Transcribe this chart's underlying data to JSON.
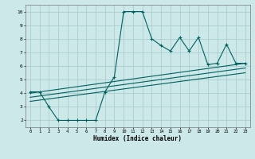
{
  "xlabel": "Humidex (Indice chaleur)",
  "background_color": "#cce8e8",
  "grid_color": "#aacece",
  "line_color": "#006060",
  "xlim": [
    -0.5,
    23.5
  ],
  "ylim": [
    1.5,
    10.5
  ],
  "xticks": [
    0,
    1,
    2,
    3,
    4,
    5,
    6,
    7,
    8,
    9,
    10,
    11,
    12,
    13,
    14,
    15,
    16,
    17,
    18,
    19,
    20,
    21,
    22,
    23
  ],
  "yticks": [
    2,
    3,
    4,
    5,
    6,
    7,
    8,
    9,
    10
  ],
  "line1_x": [
    0,
    1,
    2,
    3,
    4,
    5,
    6,
    7,
    8,
    9,
    10,
    11,
    12,
    13,
    14,
    15,
    16,
    17,
    18,
    19,
    20,
    21,
    22,
    23
  ],
  "line1_y": [
    4.1,
    4.1,
    3.0,
    2.0,
    2.0,
    2.0,
    2.0,
    2.0,
    4.1,
    5.2,
    10.0,
    10.0,
    10.0,
    8.0,
    7.5,
    7.1,
    8.1,
    7.1,
    8.1,
    6.1,
    6.2,
    7.6,
    6.2,
    6.2
  ],
  "line2_x": [
    0,
    23
  ],
  "line2_y": [
    4.0,
    6.2
  ],
  "line3_x": [
    0,
    23
  ],
  "line3_y": [
    3.7,
    5.85
  ],
  "line4_x": [
    0,
    23
  ],
  "line4_y": [
    3.4,
    5.5
  ]
}
